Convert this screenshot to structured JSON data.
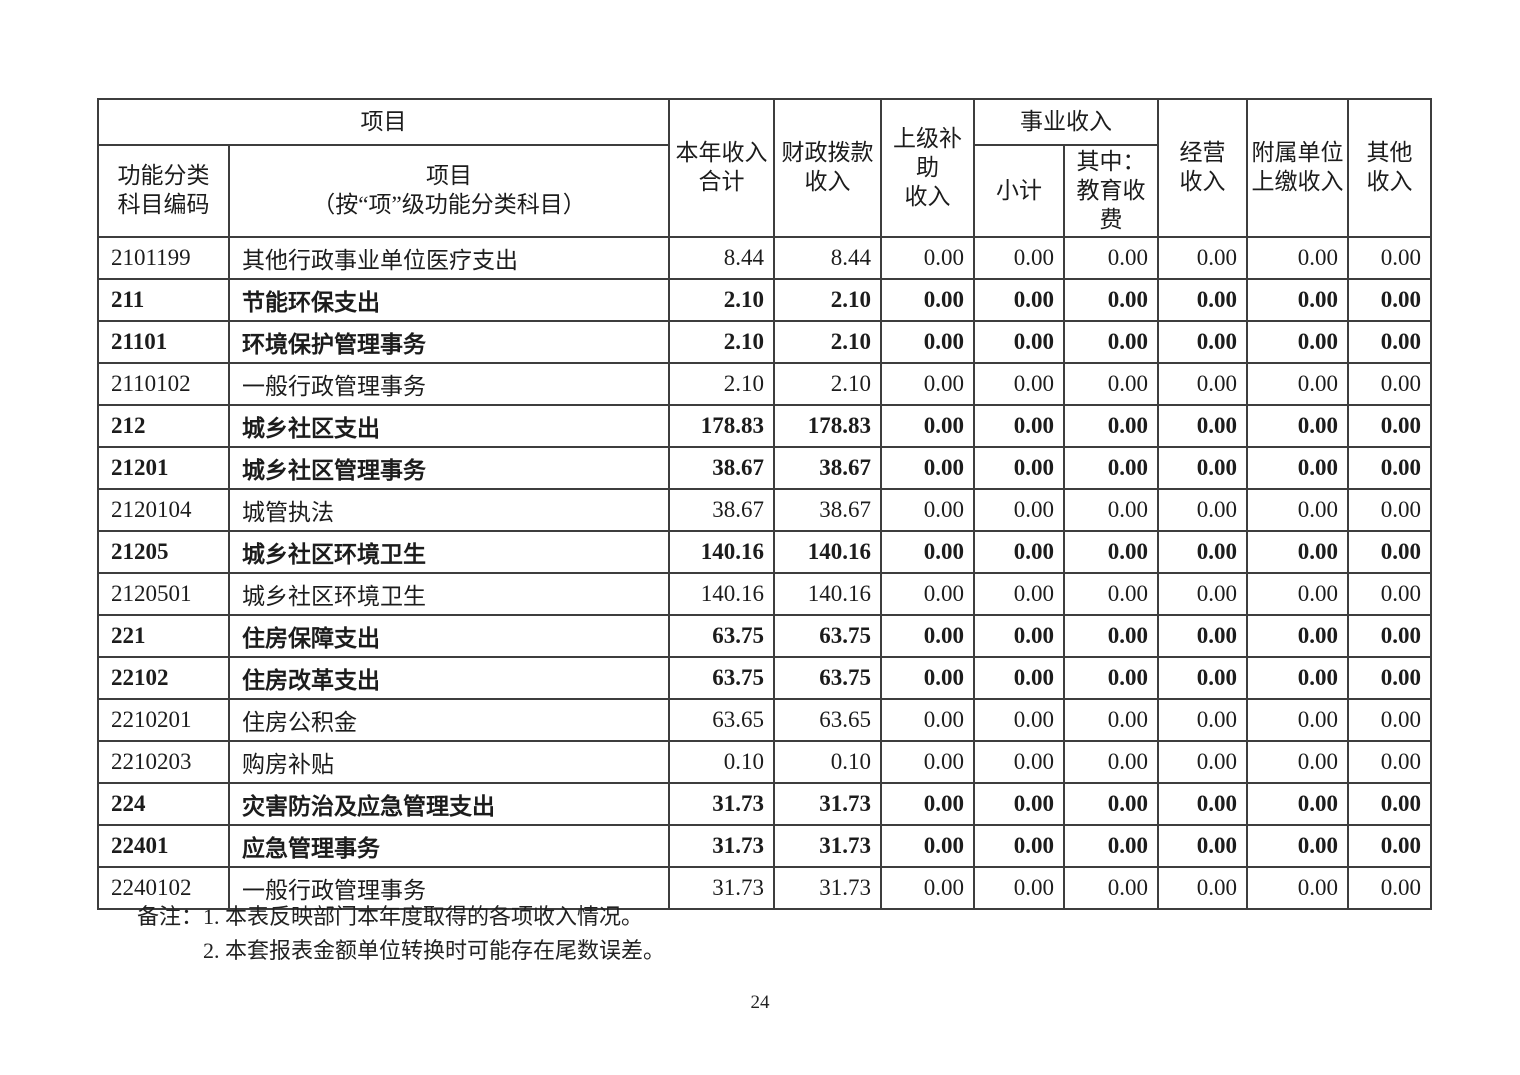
{
  "table": {
    "header": {
      "item_group": "项目",
      "code": "功能分类\n科目编码",
      "item_sub": "项目\n（按“项”级功能分类科目）",
      "total": "本年收入\n合计",
      "fiscal": "财政拨款\n收入",
      "superior": "上级补助\n收入",
      "business_group": "事业收入",
      "subtotal": "小计",
      "education": "其中：\n教育收费",
      "operating": "经营\n收入",
      "affiliated": "附属单位\n上缴收入",
      "other": "其他\n收入"
    },
    "rows": [
      {
        "code": "2101199",
        "name": "其他行政事业单位医疗支出",
        "bold": false,
        "values": [
          "8.44",
          "8.44",
          "0.00",
          "0.00",
          "0.00",
          "0.00",
          "0.00",
          "0.00"
        ]
      },
      {
        "code": "211",
        "name": "节能环保支出",
        "bold": true,
        "values": [
          "2.10",
          "2.10",
          "0.00",
          "0.00",
          "0.00",
          "0.00",
          "0.00",
          "0.00"
        ]
      },
      {
        "code": "21101",
        "name": "环境保护管理事务",
        "bold": true,
        "values": [
          "2.10",
          "2.10",
          "0.00",
          "0.00",
          "0.00",
          "0.00",
          "0.00",
          "0.00"
        ]
      },
      {
        "code": "2110102",
        "name": "一般行政管理事务",
        "bold": false,
        "values": [
          "2.10",
          "2.10",
          "0.00",
          "0.00",
          "0.00",
          "0.00",
          "0.00",
          "0.00"
        ]
      },
      {
        "code": "212",
        "name": "城乡社区支出",
        "bold": true,
        "values": [
          "178.83",
          "178.83",
          "0.00",
          "0.00",
          "0.00",
          "0.00",
          "0.00",
          "0.00"
        ]
      },
      {
        "code": "21201",
        "name": "城乡社区管理事务",
        "bold": true,
        "values": [
          "38.67",
          "38.67",
          "0.00",
          "0.00",
          "0.00",
          "0.00",
          "0.00",
          "0.00"
        ]
      },
      {
        "code": "2120104",
        "name": "城管执法",
        "bold": false,
        "values": [
          "38.67",
          "38.67",
          "0.00",
          "0.00",
          "0.00",
          "0.00",
          "0.00",
          "0.00"
        ]
      },
      {
        "code": "21205",
        "name": "城乡社区环境卫生",
        "bold": true,
        "values": [
          "140.16",
          "140.16",
          "0.00",
          "0.00",
          "0.00",
          "0.00",
          "0.00",
          "0.00"
        ]
      },
      {
        "code": "2120501",
        "name": "城乡社区环境卫生",
        "bold": false,
        "values": [
          "140.16",
          "140.16",
          "0.00",
          "0.00",
          "0.00",
          "0.00",
          "0.00",
          "0.00"
        ]
      },
      {
        "code": "221",
        "name": "住房保障支出",
        "bold": true,
        "values": [
          "63.75",
          "63.75",
          "0.00",
          "0.00",
          "0.00",
          "0.00",
          "0.00",
          "0.00"
        ]
      },
      {
        "code": "22102",
        "name": "住房改革支出",
        "bold": true,
        "values": [
          "63.75",
          "63.75",
          "0.00",
          "0.00",
          "0.00",
          "0.00",
          "0.00",
          "0.00"
        ]
      },
      {
        "code": "2210201",
        "name": "住房公积金",
        "bold": false,
        "values": [
          "63.65",
          "63.65",
          "0.00",
          "0.00",
          "0.00",
          "0.00",
          "0.00",
          "0.00"
        ]
      },
      {
        "code": "2210203",
        "name": "购房补贴",
        "bold": false,
        "values": [
          "0.10",
          "0.10",
          "0.00",
          "0.00",
          "0.00",
          "0.00",
          "0.00",
          "0.00"
        ]
      },
      {
        "code": "224",
        "name": "灾害防治及应急管理支出",
        "bold": true,
        "values": [
          "31.73",
          "31.73",
          "0.00",
          "0.00",
          "0.00",
          "0.00",
          "0.00",
          "0.00"
        ]
      },
      {
        "code": "22401",
        "name": "应急管理事务",
        "bold": true,
        "values": [
          "31.73",
          "31.73",
          "0.00",
          "0.00",
          "0.00",
          "0.00",
          "0.00",
          "0.00"
        ]
      },
      {
        "code": "2240102",
        "name": "一般行政管理事务",
        "bold": false,
        "values": [
          "31.73",
          "31.73",
          "0.00",
          "0.00",
          "0.00",
          "0.00",
          "0.00",
          "0.00"
        ]
      }
    ]
  },
  "notes": {
    "label": "备注：",
    "items": [
      "1. 本表反映部门本年度取得的各项收入情况。",
      "2. 本套报表金额单位转换时可能存在尾数误差。"
    ]
  },
  "page": {
    "number": "24"
  }
}
